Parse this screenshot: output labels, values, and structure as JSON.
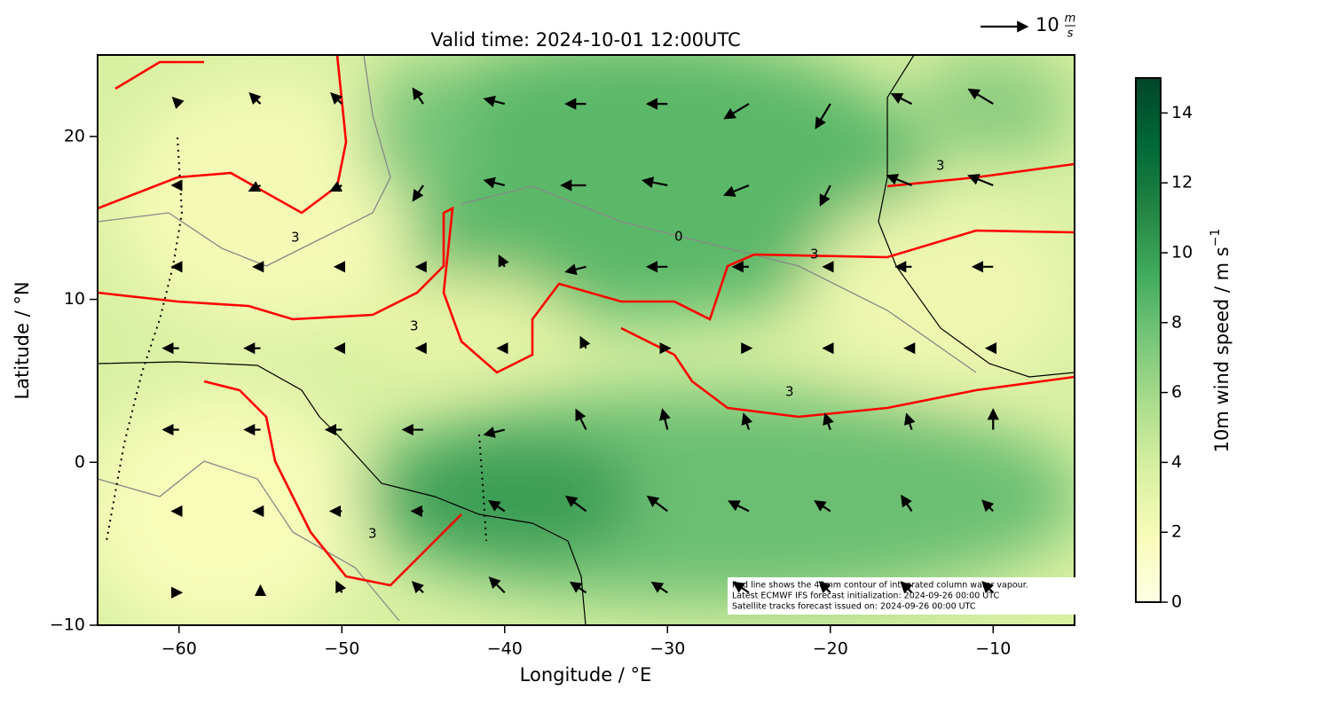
{
  "chart_data": {
    "type": "quiver",
    "title": "Valid time: 2024-10-01 12:00UTC",
    "x_label": "Longitude / °E",
    "y_label": "Latitude / °N",
    "xlim": [
      -65,
      -5
    ],
    "ylim": [
      -10,
      25
    ],
    "xticks": [
      {
        "value": -60,
        "label": "−60"
      },
      {
        "value": -50,
        "label": "−50"
      },
      {
        "value": -40,
        "label": "−40"
      },
      {
        "value": -30,
        "label": "−30"
      },
      {
        "value": -20,
        "label": "−20"
      },
      {
        "value": -10,
        "label": "−10"
      }
    ],
    "yticks": [
      {
        "value": -10,
        "label": "−10"
      },
      0,
      10,
      20
    ],
    "colorbar": {
      "label": "10m wind speed / m s",
      "label_exponent": "−1",
      "lim": [
        0,
        15
      ],
      "ticks": [
        0,
        2,
        4,
        6,
        8,
        10,
        12,
        14
      ],
      "colors": [
        "#ffffe5",
        "#f7fcb9",
        "#d9f0a3",
        "#addd8e",
        "#78c679",
        "#41ab5d",
        "#238443",
        "#006837",
        "#004529"
      ]
    },
    "quiver_key": {
      "value": 10,
      "unit_numerator": "m",
      "unit_denominator": "s"
    },
    "contour_label": "3",
    "gray_contour_label": "0",
    "annotation": [
      "Red line shows the 48mm contour of integrated column water vapour.",
      "Latest ECMWF IFS forecast initialization: 2024-09-26 00:00 UTC",
      "Satellite tracks forecast issued on: 2024-09-26 00:00 UTC"
    ],
    "wind": {
      "lons": [
        -60,
        -55,
        -50,
        -45,
        -40,
        -35,
        -30,
        -25,
        -20,
        -15,
        -10
      ],
      "lats": [
        22,
        17,
        12,
        7,
        2,
        -3,
        -8
      ],
      "u": [
        [
          -1,
          -2,
          -2,
          -2,
          -4,
          -4,
          -4,
          -5,
          -3,
          -4,
          -5
        ],
        [
          -1,
          -2,
          -2,
          -2,
          -4,
          -5,
          -5,
          -5,
          -2,
          -5,
          -5
        ],
        [
          -1,
          -1,
          -1,
          -1,
          -1,
          -4,
          -4,
          -3,
          -1,
          -3,
          -4
        ],
        [
          -3,
          -3,
          -1,
          -1,
          -1,
          -1,
          0,
          0,
          -1,
          -1,
          -1
        ],
        [
          -3,
          -3,
          -3,
          -4,
          -4,
          -2,
          -1,
          -1,
          -1,
          -1,
          0
        ],
        [
          -1,
          -1,
          -2,
          -2,
          -3,
          -4,
          -4,
          -4,
          -3,
          -2,
          -2
        ],
        [
          0,
          0,
          -1,
          -2,
          -3,
          -3,
          -3,
          -3,
          -2,
          -2,
          -2
        ]
      ],
      "v": [
        [
          1,
          2,
          2,
          3,
          1,
          0,
          0,
          -3,
          -5,
          2,
          3
        ],
        [
          0,
          -1,
          -1,
          -3,
          1,
          0,
          1,
          -2,
          -4,
          2,
          2
        ],
        [
          0,
          0,
          0,
          0,
          2,
          -1,
          0,
          0,
          0,
          0,
          0
        ],
        [
          0,
          0,
          0,
          0,
          0,
          2,
          0,
          0,
          0,
          0,
          0
        ],
        [
          0,
          0,
          0,
          0,
          -1,
          4,
          4,
          3,
          3,
          3,
          4
        ],
        [
          0,
          0,
          0,
          0,
          2,
          3,
          3,
          2,
          2,
          3,
          2
        ],
        [
          0,
          1,
          2,
          2,
          3,
          2,
          2,
          2,
          2,
          2,
          2
        ]
      ]
    }
  }
}
